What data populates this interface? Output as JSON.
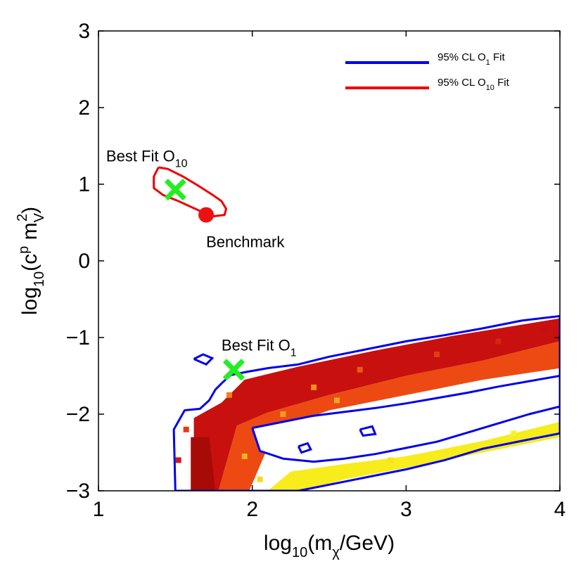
{
  "chart_data": {
    "type": "heatmap",
    "title": "",
    "xlabel": {
      "prefix": "log",
      "sub1": "10",
      "mid": "(m",
      "sub2": "χ",
      "suffix": "/GeV)"
    },
    "ylabel": {
      "prefix": "log",
      "sub1": "10",
      "mid": "(c",
      "sup1": "p",
      "mid2": " m",
      "sub2": "V",
      "sup2": "2",
      "suffix": ")"
    },
    "xlim": [
      1,
      4
    ],
    "ylim": [
      -3,
      3
    ],
    "xticks": [
      1,
      2,
      3,
      4
    ],
    "xtick_labels": [
      "1",
      "2",
      "3",
      "4"
    ],
    "yticks": [
      -3,
      -2,
      -1,
      0,
      1,
      2,
      3
    ],
    "ytick_labels": [
      "−3",
      "−2",
      "−1",
      "0",
      "1",
      "2",
      "3"
    ],
    "legend": {
      "placement": "top-right",
      "entries": [
        {
          "prefix": "95% CL O",
          "sub": "1",
          "suffix": " Fit",
          "color": "#0000ee"
        },
        {
          "prefix": "95% CL O",
          "sub": "10",
          "suffix": " Fit",
          "color": "#ee0000"
        }
      ]
    },
    "points": [
      {
        "name": "best-fit-o10",
        "x": 1.5,
        "y": 0.93,
        "marker": "x",
        "color": "#22ee22"
      },
      {
        "name": "best-fit-o1",
        "x": 1.88,
        "y": -1.42,
        "marker": "x",
        "color": "#22ee22"
      },
      {
        "name": "benchmark",
        "x": 1.7,
        "y": 0.6,
        "marker": "o",
        "color": "#ee1111"
      }
    ],
    "annotations": [
      {
        "prefix": "Best Fit O",
        "sub": "10",
        "x": 1.05,
        "y": 1.3
      },
      {
        "prefix": "Benchmark",
        "sub": "",
        "x": 1.7,
        "y": 0.18
      },
      {
        "prefix": "Best Fit O",
        "sub": "1",
        "x": 1.8,
        "y": -1.17
      }
    ],
    "contour_o10": [
      [
        1.39,
        1.22
      ],
      [
        1.45,
        1.2
      ],
      [
        1.55,
        1.1
      ],
      [
        1.65,
        0.98
      ],
      [
        1.75,
        0.85
      ],
      [
        1.8,
        0.78
      ],
      [
        1.83,
        0.68
      ],
      [
        1.82,
        0.6
      ],
      [
        1.74,
        0.58
      ],
      [
        1.64,
        0.67
      ],
      [
        1.52,
        0.78
      ],
      [
        1.42,
        0.86
      ],
      [
        1.36,
        0.95
      ],
      [
        1.36,
        1.1
      ],
      [
        1.39,
        1.22
      ]
    ],
    "contour_o1_outer": [
      [
        1.5,
        -3
      ],
      [
        1.49,
        -2.2
      ],
      [
        1.56,
        -1.95
      ],
      [
        1.66,
        -1.93
      ],
      [
        1.72,
        -1.82
      ],
      [
        1.76,
        -1.68
      ],
      [
        1.81,
        -1.58
      ],
      [
        1.86,
        -1.49
      ],
      [
        1.96,
        -1.45
      ],
      [
        2.1,
        -1.4
      ],
      [
        2.3,
        -1.35
      ],
      [
        2.5,
        -1.25
      ],
      [
        2.75,
        -1.15
      ],
      [
        3.0,
        -1.05
      ],
      [
        3.25,
        -0.97
      ],
      [
        3.5,
        -0.88
      ],
      [
        3.75,
        -0.78
      ],
      [
        4.0,
        -0.72
      ],
      [
        4.0,
        -2.25
      ],
      [
        3.75,
        -2.35
      ],
      [
        3.5,
        -2.45
      ],
      [
        3.25,
        -2.6
      ],
      [
        3.0,
        -2.72
      ],
      [
        2.75,
        -2.82
      ],
      [
        2.5,
        -2.92
      ],
      [
        2.3,
        -3
      ],
      [
        1.5,
        -3
      ]
    ],
    "contour_o1_inner": [
      [
        2.0,
        -2.18
      ],
      [
        2.2,
        -2.1
      ],
      [
        2.4,
        -2.02
      ],
      [
        2.6,
        -1.97
      ],
      [
        2.8,
        -1.92
      ],
      [
        3.0,
        -1.86
      ],
      [
        3.2,
        -1.79
      ],
      [
        3.4,
        -1.72
      ],
      [
        3.6,
        -1.64
      ],
      [
        3.8,
        -1.57
      ],
      [
        4.0,
        -1.5
      ],
      [
        4.0,
        -1.9
      ],
      [
        3.8,
        -2.0
      ],
      [
        3.6,
        -2.12
      ],
      [
        3.4,
        -2.24
      ],
      [
        3.2,
        -2.36
      ],
      [
        3.0,
        -2.44
      ],
      [
        2.8,
        -2.52
      ],
      [
        2.6,
        -2.58
      ],
      [
        2.4,
        -2.62
      ],
      [
        2.2,
        -2.58
      ],
      [
        2.05,
        -2.48
      ],
      [
        2.0,
        -2.18
      ]
    ],
    "contour_o1_islands": [
      [
        [
          1.62,
          -1.28
        ],
        [
          1.68,
          -1.22
        ],
        [
          1.74,
          -1.27
        ],
        [
          1.7,
          -1.35
        ],
        [
          1.62,
          -1.28
        ]
      ],
      [
        [
          2.3,
          -2.42
        ],
        [
          2.36,
          -2.38
        ],
        [
          2.38,
          -2.46
        ],
        [
          2.32,
          -2.5
        ],
        [
          2.3,
          -2.42
        ]
      ],
      [
        [
          2.7,
          -2.2
        ],
        [
          2.78,
          -2.16
        ],
        [
          2.8,
          -2.26
        ],
        [
          2.72,
          -2.28
        ],
        [
          2.7,
          -2.2
        ]
      ]
    ],
    "heatmap_bands": [
      {
        "name": "red-band",
        "color": "#c8100e",
        "pts": [
          [
            1.62,
            -3
          ],
          [
            1.62,
            -2.05
          ],
          [
            1.8,
            -1.85
          ],
          [
            1.95,
            -1.55
          ],
          [
            2.3,
            -1.38
          ],
          [
            2.8,
            -1.17
          ],
          [
            3.3,
            -0.98
          ],
          [
            4.0,
            -0.75
          ],
          [
            4.0,
            -1.05
          ],
          [
            3.5,
            -1.3
          ],
          [
            3.0,
            -1.5
          ],
          [
            2.5,
            -1.75
          ],
          [
            2.1,
            -1.98
          ],
          [
            1.9,
            -2.15
          ],
          [
            1.78,
            -3
          ]
        ]
      },
      {
        "name": "orange-band",
        "color": "#ec4a12",
        "pts": [
          [
            1.78,
            -3
          ],
          [
            1.9,
            -2.15
          ],
          [
            2.1,
            -1.98
          ],
          [
            2.5,
            -1.75
          ],
          [
            3.0,
            -1.5
          ],
          [
            3.5,
            -1.3
          ],
          [
            4.0,
            -1.05
          ],
          [
            4.0,
            -1.4
          ],
          [
            3.5,
            -1.55
          ],
          [
            3.0,
            -1.75
          ],
          [
            2.5,
            -1.95
          ],
          [
            2.15,
            -2.2
          ],
          [
            1.98,
            -3
          ]
        ]
      },
      {
        "name": "yellow-band",
        "color": "#f7ec1c",
        "pts": [
          [
            2.1,
            -3
          ],
          [
            2.25,
            -2.75
          ],
          [
            2.6,
            -2.65
          ],
          [
            3.0,
            -2.55
          ],
          [
            3.5,
            -2.35
          ],
          [
            4.0,
            -2.1
          ],
          [
            4.0,
            -2.3
          ],
          [
            3.5,
            -2.5
          ],
          [
            3.0,
            -2.7
          ],
          [
            2.6,
            -2.85
          ],
          [
            2.35,
            -3
          ]
        ]
      },
      {
        "name": "dark-red-column",
        "color": "#a80a08",
        "pts": [
          [
            1.6,
            -3
          ],
          [
            1.6,
            -2.3
          ],
          [
            1.72,
            -2.3
          ],
          [
            1.76,
            -3
          ]
        ]
      }
    ],
    "heatmap_cells": [
      {
        "x": 1.52,
        "y": -2.6,
        "color": "#d01a10"
      },
      {
        "x": 1.57,
        "y": -2.2,
        "color": "#e23a10"
      },
      {
        "x": 1.85,
        "y": -1.75,
        "color": "#f0821a"
      },
      {
        "x": 1.95,
        "y": -2.55,
        "color": "#f5b020"
      },
      {
        "x": 2.05,
        "y": -2.85,
        "color": "#f7d820"
      },
      {
        "x": 2.4,
        "y": -1.65,
        "color": "#f09020"
      },
      {
        "x": 2.7,
        "y": -1.42,
        "color": "#e85a14"
      },
      {
        "x": 3.2,
        "y": -1.22,
        "color": "#e04010"
      },
      {
        "x": 3.6,
        "y": -1.05,
        "color": "#d42610"
      },
      {
        "x": 3.9,
        "y": -0.88,
        "color": "#c01010"
      },
      {
        "x": 2.9,
        "y": -2.6,
        "color": "#f7e41c"
      },
      {
        "x": 3.7,
        "y": -2.25,
        "color": "#f8f030"
      },
      {
        "x": 2.2,
        "y": -2.0,
        "color": "#f29a22"
      },
      {
        "x": 2.55,
        "y": -1.82,
        "color": "#f4a624"
      }
    ]
  }
}
